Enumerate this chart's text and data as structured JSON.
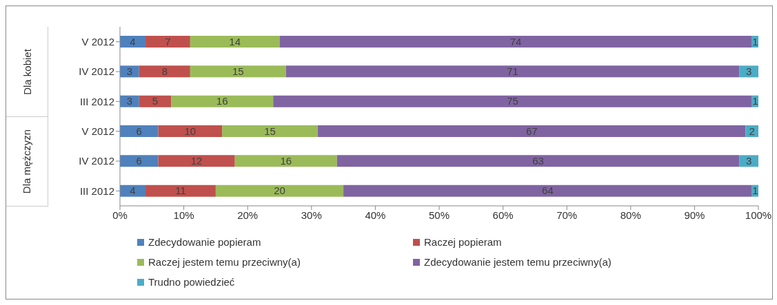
{
  "chart_data": {
    "type": "bar",
    "orientation": "horizontal",
    "stacked": true,
    "categories": [
      "V 2012",
      "IV 2012",
      "III 2012",
      "V 2012",
      "IV 2012",
      "III 2012"
    ],
    "series": [
      {
        "name": "Zdecydowanie popieram",
        "color": "#4f81bd",
        "values": [
          4,
          3,
          3,
          6,
          6,
          4
        ]
      },
      {
        "name": "Raczej popieram",
        "color": "#c0504d",
        "values": [
          7,
          8,
          5,
          10,
          12,
          11
        ]
      },
      {
        "name": "Raczej jestem temu przeciwny(a)",
        "color": "#9bbb59",
        "values": [
          14,
          15,
          16,
          15,
          16,
          20
        ]
      },
      {
        "name": "Zdecydowanie jestem temu przeciwny(a)",
        "color": "#8064a2",
        "values": [
          74,
          71,
          75,
          67,
          63,
          64
        ]
      },
      {
        "name": "Trudno powiedzieć",
        "color": "#4bacc6",
        "values": [
          1,
          3,
          1,
          2,
          3,
          1
        ]
      }
    ],
    "xlim": [
      0,
      100
    ],
    "xticks": [
      {
        "value": 0,
        "label": "0%"
      },
      {
        "value": 10,
        "label": "10%"
      },
      {
        "value": 20,
        "label": "20%"
      },
      {
        "value": 30,
        "label": "30%"
      },
      {
        "value": 40,
        "label": "40%"
      },
      {
        "value": 50,
        "label": "50%"
      },
      {
        "value": 60,
        "label": "60%"
      },
      {
        "value": 70,
        "label": "70%"
      },
      {
        "value": 80,
        "label": "80%"
      },
      {
        "value": 90,
        "label": "90%"
      },
      {
        "value": 100,
        "label": "100%"
      }
    ],
    "annotations": [
      "Dla kobiet",
      "Dla mężczyzn"
    ],
    "data_labels": true,
    "grid": false,
    "legend": "bottom"
  }
}
